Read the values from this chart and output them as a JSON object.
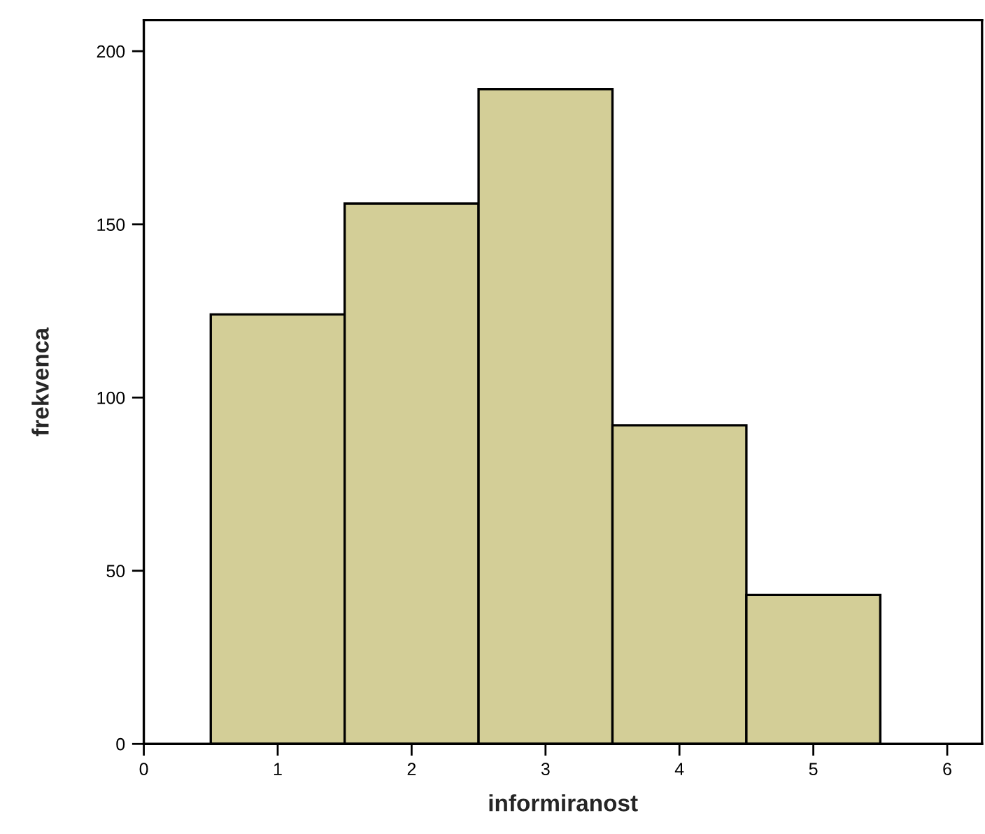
{
  "chart_data": {
    "type": "histogram",
    "xlabel": "informiranost",
    "ylabel": "frekvenca",
    "bins": [
      0.5,
      1.5,
      2.5,
      3.5,
      4.5,
      5.5
    ],
    "values": [
      124,
      156,
      189,
      92,
      43
    ],
    "color": "#d3ce97",
    "xlim": [
      0,
      6.26
    ],
    "xticks": [
      0,
      1,
      2,
      3,
      4,
      5,
      6
    ],
    "ylim": [
      0,
      209
    ],
    "yticks": [
      0,
      50,
      100,
      150,
      200
    ],
    "grid": false
  }
}
